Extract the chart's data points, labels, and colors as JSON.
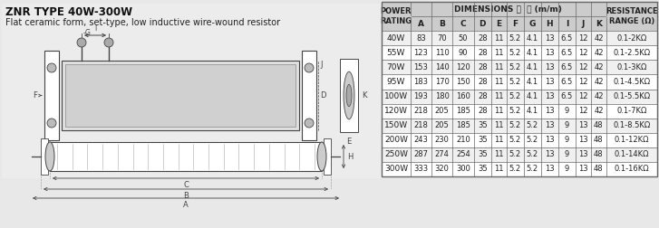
{
  "title": "ZNR TYPE 40W-300W",
  "subtitle": "Flat ceramic form, set-type, low inductive wire-wound resistor",
  "rows": [
    [
      "40W",
      "83",
      "70",
      "50",
      "28",
      "11",
      "5.2",
      "4.1",
      "13",
      "6.5",
      "12",
      "42",
      "0.1-2KΩ"
    ],
    [
      "55W",
      "123",
      "110",
      "90",
      "28",
      "11",
      "5.2",
      "4.1",
      "13",
      "6.5",
      "12",
      "42",
      "0.1-2.5KΩ"
    ],
    [
      "70W",
      "153",
      "140",
      "120",
      "28",
      "11",
      "5.2",
      "4.1",
      "13",
      "6.5",
      "12",
      "42",
      "0.1-3KΩ"
    ],
    [
      "95W",
      "183",
      "170",
      "150",
      "28",
      "11",
      "5.2",
      "4.1",
      "13",
      "6.5",
      "12",
      "42",
      "0.1-4.5KΩ"
    ],
    [
      "100W",
      "193",
      "180",
      "160",
      "28",
      "11",
      "5.2",
      "4.1",
      "13",
      "6.5",
      "12",
      "42",
      "0.1-5.5KΩ"
    ],
    [
      "120W",
      "218",
      "205",
      "185",
      "28",
      "11",
      "5.2",
      "4.1",
      "13",
      "9",
      "12",
      "42",
      "0.1-7KΩ"
    ],
    [
      "150W",
      "218",
      "205",
      "185",
      "35",
      "11",
      "5.2",
      "5.2",
      "13",
      "9",
      "13",
      "48",
      "0.1-8.5KΩ"
    ],
    [
      "200W",
      "243",
      "230",
      "210",
      "35",
      "11",
      "5.2",
      "5.2",
      "13",
      "9",
      "13",
      "48",
      "0.1-12KΩ"
    ],
    [
      "250W",
      "287",
      "274",
      "254",
      "35",
      "11",
      "5.2",
      "5.2",
      "13",
      "9",
      "13",
      "48",
      "0.1-14KΩ"
    ],
    [
      "300W",
      "333",
      "320",
      "300",
      "35",
      "11",
      "5.2",
      "5.2",
      "13",
      "9",
      "13",
      "48",
      "0.1-16KΩ"
    ]
  ],
  "col_headers": [
    "A",
    "B",
    "C",
    "D",
    "E",
    "F",
    "G",
    "H",
    "I",
    "J",
    "K"
  ],
  "text_color": "#222222",
  "title_color": "#111111",
  "header_bg": "#cccccc",
  "row_bg_even": "#f0f0f0",
  "row_bg_odd": "#ffffff",
  "border_color": "#666666",
  "line_color": "#444444",
  "bg_color": "#e8e8e8"
}
